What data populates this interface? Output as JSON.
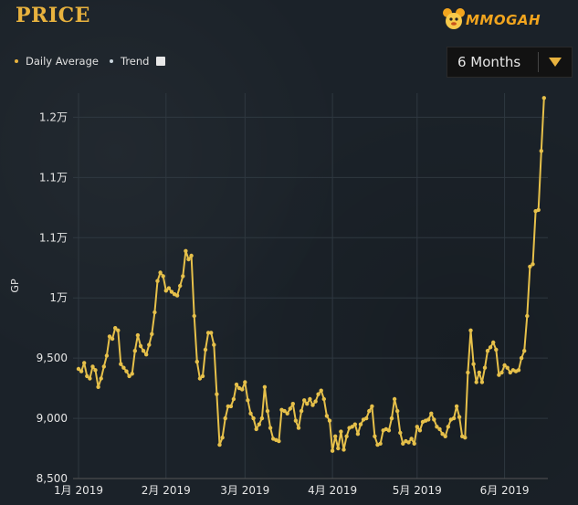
{
  "header": {
    "title": "PRICE",
    "logo_text": "MMOGAH"
  },
  "legend": {
    "items": [
      {
        "label": "Daily Average"
      },
      {
        "label": "Trend"
      }
    ]
  },
  "range_select": {
    "value": "6 Months"
  },
  "colors": {
    "accent": "#e8b23e",
    "line": "#e6c04a",
    "background": "#1b2229",
    "select_bg": "#121212"
  },
  "chart_data": {
    "type": "line",
    "ylabel": "GP",
    "y_ticks": [
      "8,500",
      "9,000",
      "9,500",
      "1万",
      "1.1万",
      "1.1万",
      "1.2万"
    ],
    "y_tick_values": [
      8500,
      9000,
      9500,
      10000,
      10500,
      11000,
      11500
    ],
    "ylim": [
      8500,
      11700
    ],
    "x_ticks": [
      "1月 2019",
      "2月 2019",
      "3月 2019",
      "4月 2019",
      "5月 2019",
      "6月 2019"
    ],
    "x_tick_dates": [
      "2019-01-01",
      "2019-02-01",
      "2019-03-01",
      "2019-04-01",
      "2019-05-01",
      "2019-06-01"
    ],
    "grid": true,
    "series": [
      {
        "name": "Daily Average",
        "points": [
          [
            "2019-01-01",
            9410
          ],
          [
            "2019-01-02",
            9390
          ],
          [
            "2019-01-03",
            9460
          ],
          [
            "2019-01-04",
            9350
          ],
          [
            "2019-01-05",
            9330
          ],
          [
            "2019-01-06",
            9430
          ],
          [
            "2019-01-07",
            9400
          ],
          [
            "2019-01-08",
            9260
          ],
          [
            "2019-01-09",
            9330
          ],
          [
            "2019-01-10",
            9430
          ],
          [
            "2019-01-11",
            9520
          ],
          [
            "2019-01-12",
            9680
          ],
          [
            "2019-01-13",
            9660
          ],
          [
            "2019-01-14",
            9750
          ],
          [
            "2019-01-15",
            9730
          ],
          [
            "2019-01-16",
            9450
          ],
          [
            "2019-01-17",
            9420
          ],
          [
            "2019-01-18",
            9390
          ],
          [
            "2019-01-19",
            9350
          ],
          [
            "2019-01-20",
            9370
          ],
          [
            "2019-01-21",
            9560
          ],
          [
            "2019-01-22",
            9690
          ],
          [
            "2019-01-23",
            9600
          ],
          [
            "2019-01-24",
            9560
          ],
          [
            "2019-01-25",
            9530
          ],
          [
            "2019-01-26",
            9610
          ],
          [
            "2019-01-27",
            9700
          ],
          [
            "2019-01-28",
            9880
          ],
          [
            "2019-01-29",
            10140
          ],
          [
            "2019-01-30",
            10210
          ],
          [
            "2019-01-31",
            10180
          ],
          [
            "2019-02-01",
            10060
          ],
          [
            "2019-02-02",
            10080
          ],
          [
            "2019-02-03",
            10050
          ],
          [
            "2019-02-04",
            10030
          ],
          [
            "2019-02-05",
            10020
          ],
          [
            "2019-02-06",
            10100
          ],
          [
            "2019-02-07",
            10180
          ],
          [
            "2019-02-08",
            10390
          ],
          [
            "2019-02-09",
            10320
          ],
          [
            "2019-02-10",
            10350
          ],
          [
            "2019-02-11",
            9850
          ],
          [
            "2019-02-12",
            9470
          ],
          [
            "2019-02-13",
            9330
          ],
          [
            "2019-02-14",
            9350
          ],
          [
            "2019-02-15",
            9570
          ],
          [
            "2019-02-16",
            9710
          ],
          [
            "2019-02-17",
            9710
          ],
          [
            "2019-02-18",
            9610
          ],
          [
            "2019-02-19",
            9200
          ],
          [
            "2019-02-20",
            8780
          ],
          [
            "2019-02-21",
            8840
          ],
          [
            "2019-02-22",
            9000
          ],
          [
            "2019-02-23",
            9100
          ],
          [
            "2019-02-24",
            9100
          ],
          [
            "2019-02-25",
            9160
          ],
          [
            "2019-02-26",
            9280
          ],
          [
            "2019-02-27",
            9250
          ],
          [
            "2019-02-28",
            9240
          ],
          [
            "2019-03-01",
            9300
          ],
          [
            "2019-03-02",
            9150
          ],
          [
            "2019-03-03",
            9040
          ],
          [
            "2019-03-04",
            9000
          ],
          [
            "2019-03-05",
            8910
          ],
          [
            "2019-03-06",
            8950
          ],
          [
            "2019-03-07",
            9000
          ],
          [
            "2019-03-08",
            9260
          ],
          [
            "2019-03-09",
            9060
          ],
          [
            "2019-03-10",
            8920
          ],
          [
            "2019-03-11",
            8830
          ],
          [
            "2019-03-12",
            8820
          ],
          [
            "2019-03-13",
            8810
          ],
          [
            "2019-03-14",
            9070
          ],
          [
            "2019-03-15",
            9060
          ],
          [
            "2019-03-16",
            9040
          ],
          [
            "2019-03-17",
            9080
          ],
          [
            "2019-03-18",
            9120
          ],
          [
            "2019-03-19",
            8980
          ],
          [
            "2019-03-20",
            8920
          ],
          [
            "2019-03-21",
            9060
          ],
          [
            "2019-03-22",
            9150
          ],
          [
            "2019-03-23",
            9120
          ],
          [
            "2019-03-24",
            9160
          ],
          [
            "2019-03-25",
            9110
          ],
          [
            "2019-03-26",
            9140
          ],
          [
            "2019-03-27",
            9200
          ],
          [
            "2019-03-28",
            9230
          ],
          [
            "2019-03-29",
            9160
          ],
          [
            "2019-03-30",
            9020
          ],
          [
            "2019-03-31",
            8980
          ],
          [
            "2019-04-01",
            8730
          ],
          [
            "2019-04-02",
            8850
          ],
          [
            "2019-04-03",
            8750
          ],
          [
            "2019-04-04",
            8890
          ],
          [
            "2019-04-05",
            8740
          ],
          [
            "2019-04-06",
            8850
          ],
          [
            "2019-04-07",
            8920
          ],
          [
            "2019-04-08",
            8930
          ],
          [
            "2019-04-09",
            8950
          ],
          [
            "2019-04-10",
            8870
          ],
          [
            "2019-04-11",
            8950
          ],
          [
            "2019-04-12",
            8990
          ],
          [
            "2019-04-13",
            9000
          ],
          [
            "2019-04-14",
            9060
          ],
          [
            "2019-04-15",
            9100
          ],
          [
            "2019-04-16",
            8850
          ],
          [
            "2019-04-17",
            8780
          ],
          [
            "2019-04-18",
            8790
          ],
          [
            "2019-04-19",
            8900
          ],
          [
            "2019-04-20",
            8910
          ],
          [
            "2019-04-21",
            8900
          ],
          [
            "2019-04-22",
            9000
          ],
          [
            "2019-04-23",
            9160
          ],
          [
            "2019-04-24",
            9060
          ],
          [
            "2019-04-25",
            8880
          ],
          [
            "2019-04-26",
            8790
          ],
          [
            "2019-04-27",
            8810
          ],
          [
            "2019-04-28",
            8800
          ],
          [
            "2019-04-29",
            8830
          ],
          [
            "2019-04-30",
            8790
          ],
          [
            "2019-05-01",
            8930
          ],
          [
            "2019-05-02",
            8900
          ],
          [
            "2019-05-03",
            8970
          ],
          [
            "2019-05-04",
            8980
          ],
          [
            "2019-05-05",
            8990
          ],
          [
            "2019-05-06",
            9040
          ],
          [
            "2019-05-07",
            8990
          ],
          [
            "2019-05-08",
            8930
          ],
          [
            "2019-05-09",
            8910
          ],
          [
            "2019-05-10",
            8870
          ],
          [
            "2019-05-11",
            8850
          ],
          [
            "2019-05-12",
            8930
          ],
          [
            "2019-05-13",
            8990
          ],
          [
            "2019-05-14",
            9000
          ],
          [
            "2019-05-15",
            9100
          ],
          [
            "2019-05-16",
            9010
          ],
          [
            "2019-05-17",
            8850
          ],
          [
            "2019-05-18",
            8840
          ],
          [
            "2019-05-19",
            9380
          ],
          [
            "2019-05-20",
            9730
          ],
          [
            "2019-05-21",
            9450
          ],
          [
            "2019-05-22",
            9300
          ],
          [
            "2019-05-23",
            9380
          ],
          [
            "2019-05-24",
            9300
          ],
          [
            "2019-05-25",
            9420
          ],
          [
            "2019-05-26",
            9560
          ],
          [
            "2019-05-27",
            9590
          ],
          [
            "2019-05-28",
            9630
          ],
          [
            "2019-05-29",
            9570
          ],
          [
            "2019-05-30",
            9360
          ],
          [
            "2019-05-31",
            9380
          ],
          [
            "2019-06-01",
            9440
          ],
          [
            "2019-06-02",
            9420
          ],
          [
            "2019-06-03",
            9380
          ],
          [
            "2019-06-04",
            9400
          ],
          [
            "2019-06-05",
            9390
          ],
          [
            "2019-06-06",
            9400
          ],
          [
            "2019-06-07",
            9500
          ],
          [
            "2019-06-08",
            9560
          ],
          [
            "2019-06-09",
            9850
          ],
          [
            "2019-06-10",
            10260
          ],
          [
            "2019-06-11",
            10280
          ],
          [
            "2019-06-12",
            10720
          ],
          [
            "2019-06-13",
            10730
          ],
          [
            "2019-06-14",
            11220
          ],
          [
            "2019-06-15",
            11660
          ]
        ]
      }
    ]
  }
}
